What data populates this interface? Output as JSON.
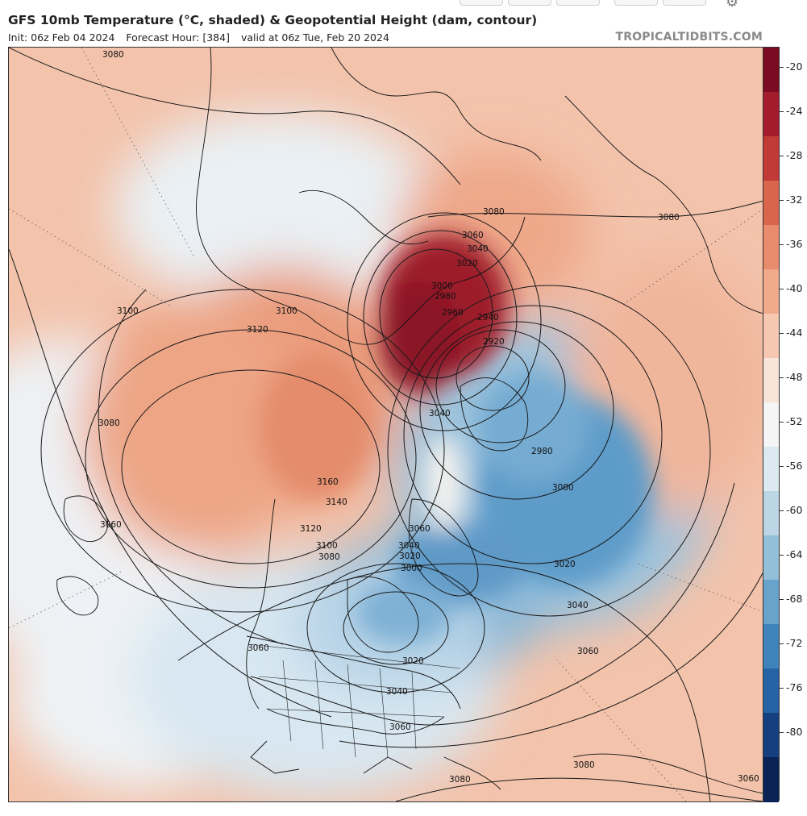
{
  "header": {
    "title": "GFS 10mb Temperature (°C, shaded) & Geopotential Height (dam, contour)",
    "init": "Init: 06z Feb 04 2024",
    "forecast_hour": "Forecast Hour: [384]",
    "valid": "valid at 06z Tue, Feb 20 2024",
    "brand": "TROPICALTIDBITS.COM"
  },
  "colorbar": {
    "labels": [
      "-20",
      "-24",
      "-28",
      "-32",
      "-36",
      "-40",
      "-44",
      "-48",
      "-52",
      "-56",
      "-60",
      "-64",
      "-68",
      "-72",
      "-76",
      "-80"
    ],
    "colors": [
      "#7a0b22",
      "#a41b2b",
      "#c13a36",
      "#d9654c",
      "#e98b6d",
      "#f1aa8c",
      "#f6c8b2",
      "#f9e4d9",
      "#f5f5f5",
      "#dce9f1",
      "#bcd6e6",
      "#93bfd9",
      "#67a3cb",
      "#3f83bb",
      "#2563a6",
      "#163f80",
      "#0b2455"
    ]
  },
  "contour_labels": [
    "3080",
    "3080",
    "3060",
    "3040",
    "3020",
    "3000",
    "2980",
    "2960",
    "2940",
    "2920",
    "3100",
    "3120",
    "3100",
    "3080",
    "3040",
    "2980",
    "3000",
    "3020",
    "3040",
    "3060",
    "3160",
    "3140",
    "3120",
    "3100",
    "3080",
    "3060",
    "3040",
    "3020",
    "3000",
    "3060",
    "3060",
    "3020",
    "3040",
    "3060",
    "3080",
    "3080",
    "3080",
    "3060"
  ]
}
